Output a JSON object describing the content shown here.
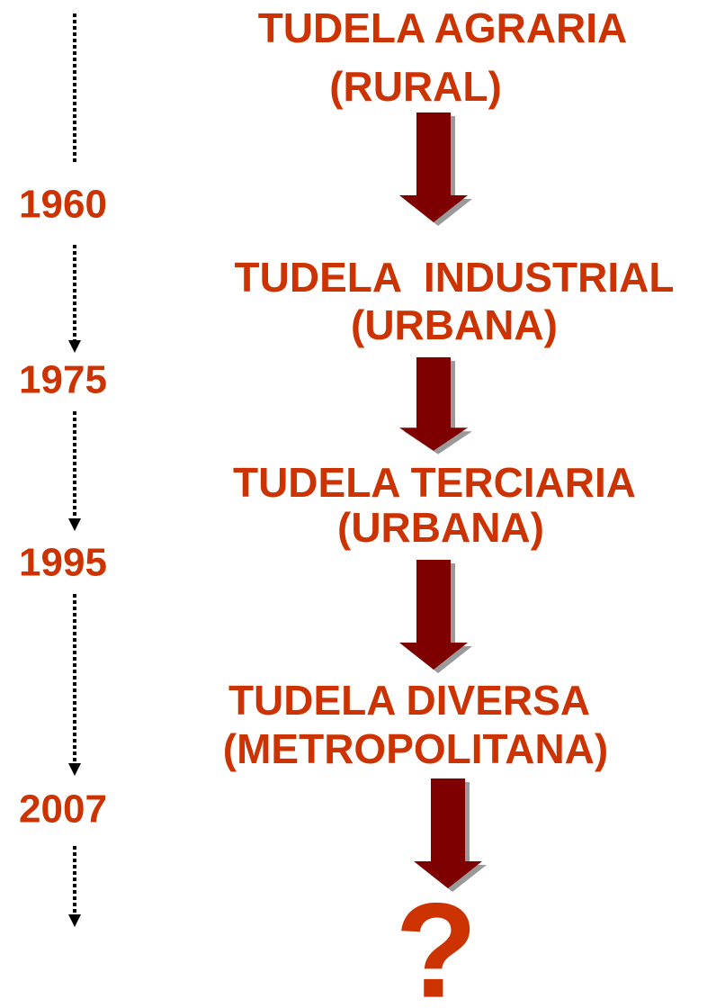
{
  "years": [
    "1960",
    "1975",
    "1995",
    "2007"
  ],
  "stages": [
    {
      "title": "TUDELA AGRARIA",
      "subtitle": "(RURAL)"
    },
    {
      "title": "TUDELA  INDUSTRIAL",
      "subtitle": "(URBANA)"
    },
    {
      "title": "TUDELA TERCIARIA",
      "subtitle": "(URBANA)"
    },
    {
      "title": "TUDELA DIVERSA",
      "subtitle": "(METROPOLITANA)"
    }
  ],
  "end": "?"
}
